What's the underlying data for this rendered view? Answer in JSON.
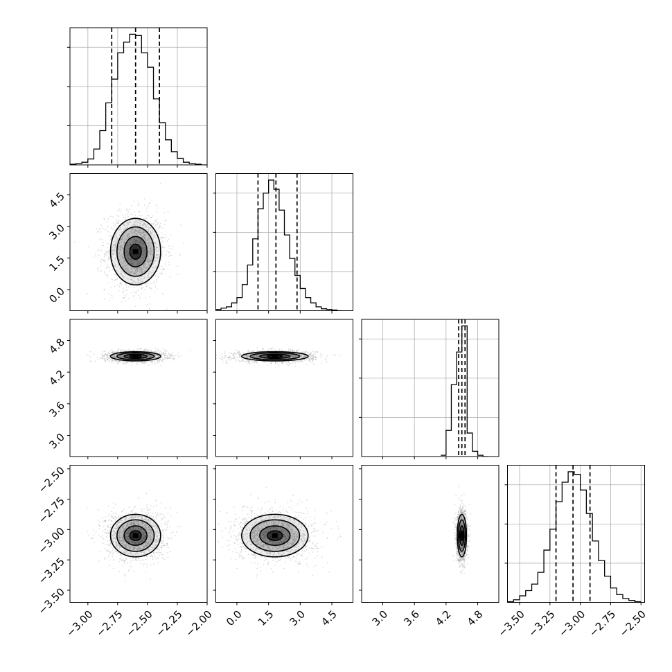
{
  "chart_data": {
    "type": "corner",
    "parameters": 4,
    "axes": [
      {
        "range": [
          -3.15,
          -2.0
        ],
        "ticks": [
          -3.0,
          -2.75,
          -2.5,
          -2.25,
          -2.0
        ],
        "tick_labels": [
          "−3.00",
          "−2.75",
          "−2.50",
          "−2.25",
          "−2.00"
        ]
      },
      {
        "range": [
          -1.0,
          5.5
        ],
        "ticks": [
          0.0,
          1.5,
          3.0,
          4.5
        ],
        "tick_labels": [
          "0.0",
          "1.5",
          "3.0",
          "4.5"
        ]
      },
      {
        "range": [
          2.6,
          5.2
        ],
        "ticks": [
          3.0,
          3.6,
          4.2,
          4.8
        ],
        "tick_labels": [
          "3.0",
          "3.6",
          "4.2",
          "4.8"
        ]
      },
      {
        "range": [
          -3.6,
          -2.47
        ],
        "ticks": [
          -3.5,
          -3.25,
          -3.0,
          -2.75,
          -2.5
        ],
        "tick_labels": [
          "−3.50",
          "−3.25",
          "−3.00",
          "−2.75",
          "−2.50"
        ]
      }
    ],
    "marginals": [
      {
        "bin_edges": [
          -3.15,
          -3.1,
          -3.05,
          -3.0,
          -2.95,
          -2.9,
          -2.85,
          -2.8,
          -2.75,
          -2.7,
          -2.65,
          -2.6,
          -2.55,
          -2.5,
          -2.45,
          -2.4,
          -2.35,
          -2.3,
          -2.25,
          -2.2,
          -2.15,
          -2.1,
          -2.05,
          -2.0
        ],
        "counts": [
          0.005,
          0.01,
          0.02,
          0.045,
          0.12,
          0.26,
          0.47,
          0.65,
          0.85,
          0.93,
          0.99,
          0.98,
          0.85,
          0.74,
          0.5,
          0.32,
          0.19,
          0.1,
          0.05,
          0.02,
          0.01,
          0.005,
          0.0
        ],
        "quantiles": [
          -2.8,
          -2.6,
          -2.4
        ]
      },
      {
        "bin_edges": [
          -1.0,
          -0.75,
          -0.5,
          -0.25,
          0.0,
          0.25,
          0.5,
          0.75,
          1.0,
          1.25,
          1.5,
          1.75,
          2.0,
          2.25,
          2.5,
          2.75,
          3.0,
          3.25,
          3.5,
          3.75,
          4.0,
          4.25,
          4.5,
          4.75,
          5.0
        ],
        "counts": [
          0.01,
          0.02,
          0.03,
          0.06,
          0.1,
          0.2,
          0.35,
          0.55,
          0.78,
          0.9,
          1.0,
          0.93,
          0.77,
          0.58,
          0.4,
          0.27,
          0.17,
          0.1,
          0.06,
          0.03,
          0.015,
          0.01,
          0.005,
          0.0
        ],
        "quantiles": [
          1.0,
          1.85,
          2.85
        ]
      },
      {
        "bin_edges": [
          4.1,
          4.2,
          4.3,
          4.4,
          4.5,
          4.6,
          4.7,
          4.8,
          4.9,
          5.0
        ],
        "counts": [
          0.01,
          0.2,
          0.55,
          0.8,
          1.0,
          0.18,
          0.04,
          0.01,
          0.0
        ],
        "quantiles": [
          4.44,
          4.5,
          4.56
        ]
      },
      {
        "bin_edges": [
          -3.6,
          -3.55,
          -3.5,
          -3.45,
          -3.4,
          -3.35,
          -3.3,
          -3.25,
          -3.2,
          -3.15,
          -3.1,
          -3.05,
          -3.0,
          -2.95,
          -2.9,
          -2.85,
          -2.8,
          -2.75,
          -2.7,
          -2.65,
          -2.6,
          -2.55,
          -2.5
        ],
        "counts": [
          0.005,
          0.02,
          0.05,
          0.09,
          0.14,
          0.23,
          0.4,
          0.56,
          0.77,
          0.92,
          1.0,
          0.98,
          0.86,
          0.68,
          0.47,
          0.32,
          0.2,
          0.11,
          0.06,
          0.03,
          0.015,
          0.005
        ],
        "quantiles": [
          -3.2,
          -3.06,
          -2.92
        ]
      }
    ],
    "joint": [
      {
        "x_param": 0,
        "y_param": 1,
        "center": [
          -2.6,
          1.8
        ],
        "sigma": [
          0.12,
          0.9
        ],
        "corr": 0.0,
        "contour_scale": [
          0.4,
          0.8,
          1.3,
          1.75
        ]
      },
      {
        "x_param": 0,
        "y_param": 2,
        "center": [
          -2.6,
          4.5
        ],
        "sigma": [
          0.12,
          0.05
        ],
        "corr": 0.0,
        "contour_scale": [
          0.4,
          0.8,
          1.3,
          1.75
        ]
      },
      {
        "x_param": 1,
        "y_param": 2,
        "center": [
          1.8,
          4.5
        ],
        "sigma": [
          0.9,
          0.05
        ],
        "corr": 0.0,
        "contour_scale": [
          0.4,
          0.8,
          1.3,
          1.75
        ]
      },
      {
        "x_param": 0,
        "y_param": 3,
        "center": [
          -2.6,
          -3.05
        ],
        "sigma": [
          0.12,
          0.1
        ],
        "corr": 0.0,
        "contour_scale": [
          0.4,
          0.8,
          1.3,
          1.75
        ]
      },
      {
        "x_param": 1,
        "y_param": 3,
        "center": [
          1.8,
          -3.05
        ],
        "sigma": [
          0.9,
          0.1
        ],
        "corr": 0.0,
        "contour_scale": [
          0.4,
          0.8,
          1.3,
          1.75
        ]
      },
      {
        "x_param": 2,
        "y_param": 3,
        "center": [
          4.5,
          -3.05
        ],
        "sigma": [
          0.05,
          0.1
        ],
        "corr": 0.0,
        "contour_scale": [
          0.4,
          0.8,
          1.3,
          1.75
        ]
      }
    ],
    "grid": true,
    "colors": {
      "line": "#000000",
      "points": "#9a9a9a",
      "grid": "#b0b0b0",
      "density": "#000000"
    }
  }
}
